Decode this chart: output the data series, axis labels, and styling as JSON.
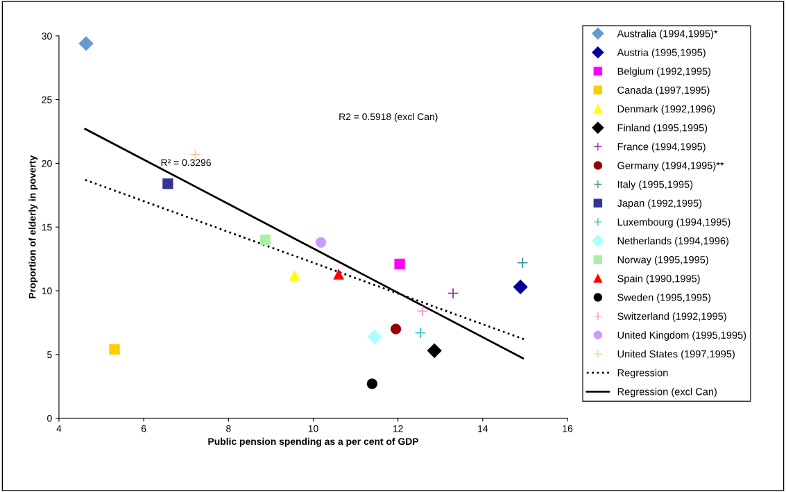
{
  "chart_data": {
    "type": "scatter",
    "xlabel": "Public pension spending as a per cent of GDP",
    "ylabel": "Proportion of elderly in poverty",
    "xlim": [
      4,
      16
    ],
    "xticks": [
      4,
      6,
      8,
      10,
      12,
      14,
      16
    ],
    "ylim": [
      0,
      30
    ],
    "yticks": [
      0,
      5,
      10,
      15,
      20,
      25,
      30
    ],
    "grid": false,
    "legend": "right",
    "series": [
      {
        "name": "Australia (1994,1995)*",
        "color": "#6699cc",
        "marker": "diamond",
        "x": [
          4.64
        ],
        "values": [
          29.4
        ]
      },
      {
        "name": "Austria (1995,1995)",
        "color": "#000099",
        "marker": "diamond",
        "x": [
          14.89
        ],
        "values": [
          10.3
        ]
      },
      {
        "name": "Belgium (1992,1995)",
        "color": "#ff00ff",
        "marker": "square",
        "x": [
          12.04
        ],
        "values": [
          12.1
        ]
      },
      {
        "name": "Canada (1997,1995)",
        "color": "#ffcc00",
        "marker": "square",
        "x": [
          5.31
        ],
        "values": [
          5.4
        ]
      },
      {
        "name": "Denmark (1992,1996)",
        "color": "#ffff00",
        "marker": "triangle",
        "x": [
          9.56
        ],
        "values": [
          11.2
        ]
      },
      {
        "name": "Finland (1995,1995)",
        "color": "#000000",
        "marker": "diamond",
        "x": [
          12.86
        ],
        "values": [
          5.3
        ]
      },
      {
        "name": "France (1994,1995)",
        "color": "#993399",
        "marker": "cross",
        "x": [
          13.3
        ],
        "values": [
          9.8
        ]
      },
      {
        "name": "Germany (1994,1995)**",
        "color": "#990000",
        "marker": "circle",
        "x": [
          11.95
        ],
        "values": [
          7.0
        ]
      },
      {
        "name": "Italy (1995,1995)",
        "color": "#339999",
        "marker": "cross",
        "x": [
          14.94
        ],
        "values": [
          12.2
        ]
      },
      {
        "name": "Japan (1992,1995)",
        "color": "#333399",
        "marker": "square",
        "x": [
          6.57
        ],
        "values": [
          18.4
        ]
      },
      {
        "name": "Luxembourg (1994,1995)",
        "color": "#33cccc",
        "marker": "cross",
        "x": [
          12.53
        ],
        "values": [
          6.7
        ]
      },
      {
        "name": "Netherlands (1994,1996)",
        "color": "#aaffff",
        "marker": "diamond",
        "x": [
          11.45
        ],
        "values": [
          6.4
        ]
      },
      {
        "name": "Norway (1995,1995)",
        "color": "#aaeeaa",
        "marker": "square",
        "x": [
          8.87
        ],
        "values": [
          14.0
        ]
      },
      {
        "name": "Spain (1990,1995)",
        "color": "#ff0000",
        "marker": "triangle",
        "x": [
          10.6
        ],
        "values": [
          11.3
        ]
      },
      {
        "name": "Sweden (1995,1995)",
        "color": "#000000",
        "marker": "circle",
        "x": [
          11.39
        ],
        "values": [
          2.7
        ]
      },
      {
        "name": "Switzerland (1992,1995)",
        "color": "#ff99cc",
        "marker": "cross",
        "x": [
          12.58
        ],
        "values": [
          8.4
        ]
      },
      {
        "name": "United Kingdom (1995,1995)",
        "color": "#cc99ff",
        "marker": "circle",
        "x": [
          10.18
        ],
        "values": [
          13.8
        ]
      },
      {
        "name": "United States (1997,1995)",
        "color": "#ffcc99",
        "marker": "cross",
        "x": [
          7.22
        ],
        "values": [
          20.7
        ]
      },
      {
        "name": "Regression",
        "type": "line",
        "color": "#000000",
        "line_style": "dotted",
        "marker": "none",
        "x": [
          4.62,
          14.97
        ],
        "values": [
          18.7,
          6.2
        ]
      },
      {
        "name": "Regression (excl Can)",
        "type": "line",
        "color": "#000000",
        "line_style": "solid",
        "marker": "none",
        "x": [
          4.62,
          14.95
        ],
        "values": [
          22.7,
          4.7
        ]
      }
    ],
    "annotations": [
      "R2 = 0.5918 (excl Can)",
      "R² = 0.3296"
    ]
  }
}
